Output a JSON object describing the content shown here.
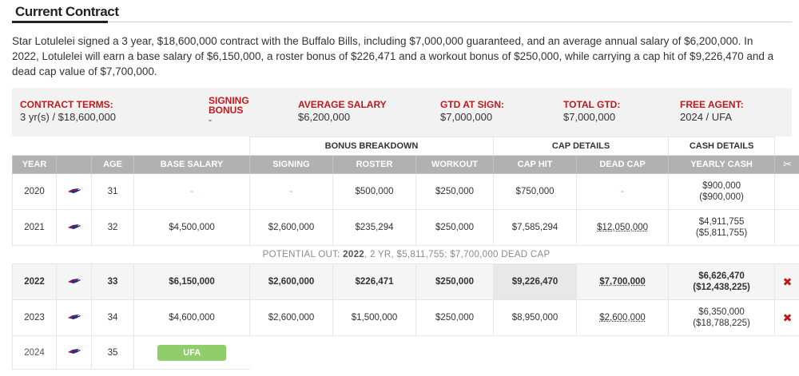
{
  "section": {
    "title": "Current Contract"
  },
  "summary": "Star Lotulelei signed a 3 year, $18,600,000 contract with the Buffalo Bills, including $7,000,000 guaranteed, and an average annual salary of $6,200,000. In 2022, Lotulelei will earn a base salary of $6,150,000, a roster bonus of $226,471 and a workout bonus of $250,000, while carrying a cap hit of $9,226,470 and a dead cap value of $7,700,000.",
  "terms": {
    "contract_terms": {
      "label": "Contract Terms:",
      "value": "3 yr(s) / $18,600,000"
    },
    "signing_bonus": {
      "label": "Signing Bonus",
      "value": "-"
    },
    "average_salary": {
      "label": "Average Salary",
      "value": "$6,200,000"
    },
    "gtd_at_sign": {
      "label": "GTD at Sign:",
      "value": "$7,000,000"
    },
    "total_gtd": {
      "label": "Total GTD:",
      "value": "$7,000,000"
    },
    "free_agent": {
      "label": "Free Agent:",
      "value": "2024 / UFA"
    }
  },
  "groups": {
    "bonus": "BONUS BREAKDOWN",
    "cap": "CAP DETAILS",
    "cash": "CASH DETAILS"
  },
  "columns": [
    "Year",
    "Age",
    "Base Salary",
    "Signing",
    "Roster",
    "Workout",
    "Cap Hit",
    "Dead Cap",
    "Yearly Cash"
  ],
  "icons": {
    "team_logo": "bills-logo-icon",
    "cut": "scissors-icon",
    "release": "red-x-icon"
  },
  "colors": {
    "accent_red": "#c0191b",
    "header_gray": "#b1b1b1",
    "ufa_green": "#8fce6b"
  },
  "rows": [
    {
      "year": "2020",
      "age": "31",
      "base": "-",
      "signing": "-",
      "roster": "$500,000",
      "workout": "$250,000",
      "cap_hit": "$750,000",
      "dead_cap": "-",
      "cash_year": "$900,000",
      "cash_total": "($900,000)"
    },
    {
      "year": "2021",
      "age": "32",
      "base": "$4,500,000",
      "signing": "$2,600,000",
      "roster": "$235,294",
      "workout": "$250,000",
      "cap_hit": "$7,585,294",
      "dead_cap": "$12,050,000",
      "cash_year": "$4,911,755",
      "cash_total": "($5,811,755)"
    },
    {
      "year": "2022",
      "age": "33",
      "base": "$6,150,000",
      "signing": "$2,600,000",
      "roster": "$226,471",
      "workout": "$250,000",
      "cap_hit": "$9,226,470",
      "dead_cap": "$7,700,000",
      "cash_year": "$6,626,470",
      "cash_total": "($12,438,225)",
      "release_mark": "✖"
    },
    {
      "year": "2023",
      "age": "34",
      "base": "$4,600,000",
      "signing": "$2,600,000",
      "roster": "$1,500,000",
      "workout": "$250,000",
      "cap_hit": "$8,950,000",
      "dead_cap": "$2,600,000",
      "cash_year": "$6,350,000",
      "cash_total": "($18,788,225)",
      "release_mark": "✖"
    },
    {
      "year": "2024",
      "age": "35",
      "status": "UFA"
    }
  ],
  "potential_out": {
    "prefix": "POTENTIAL OUT:",
    "year": "2022",
    "details": ", 2 YR, $5,811,755; $7,700,000 DEAD CAP"
  }
}
